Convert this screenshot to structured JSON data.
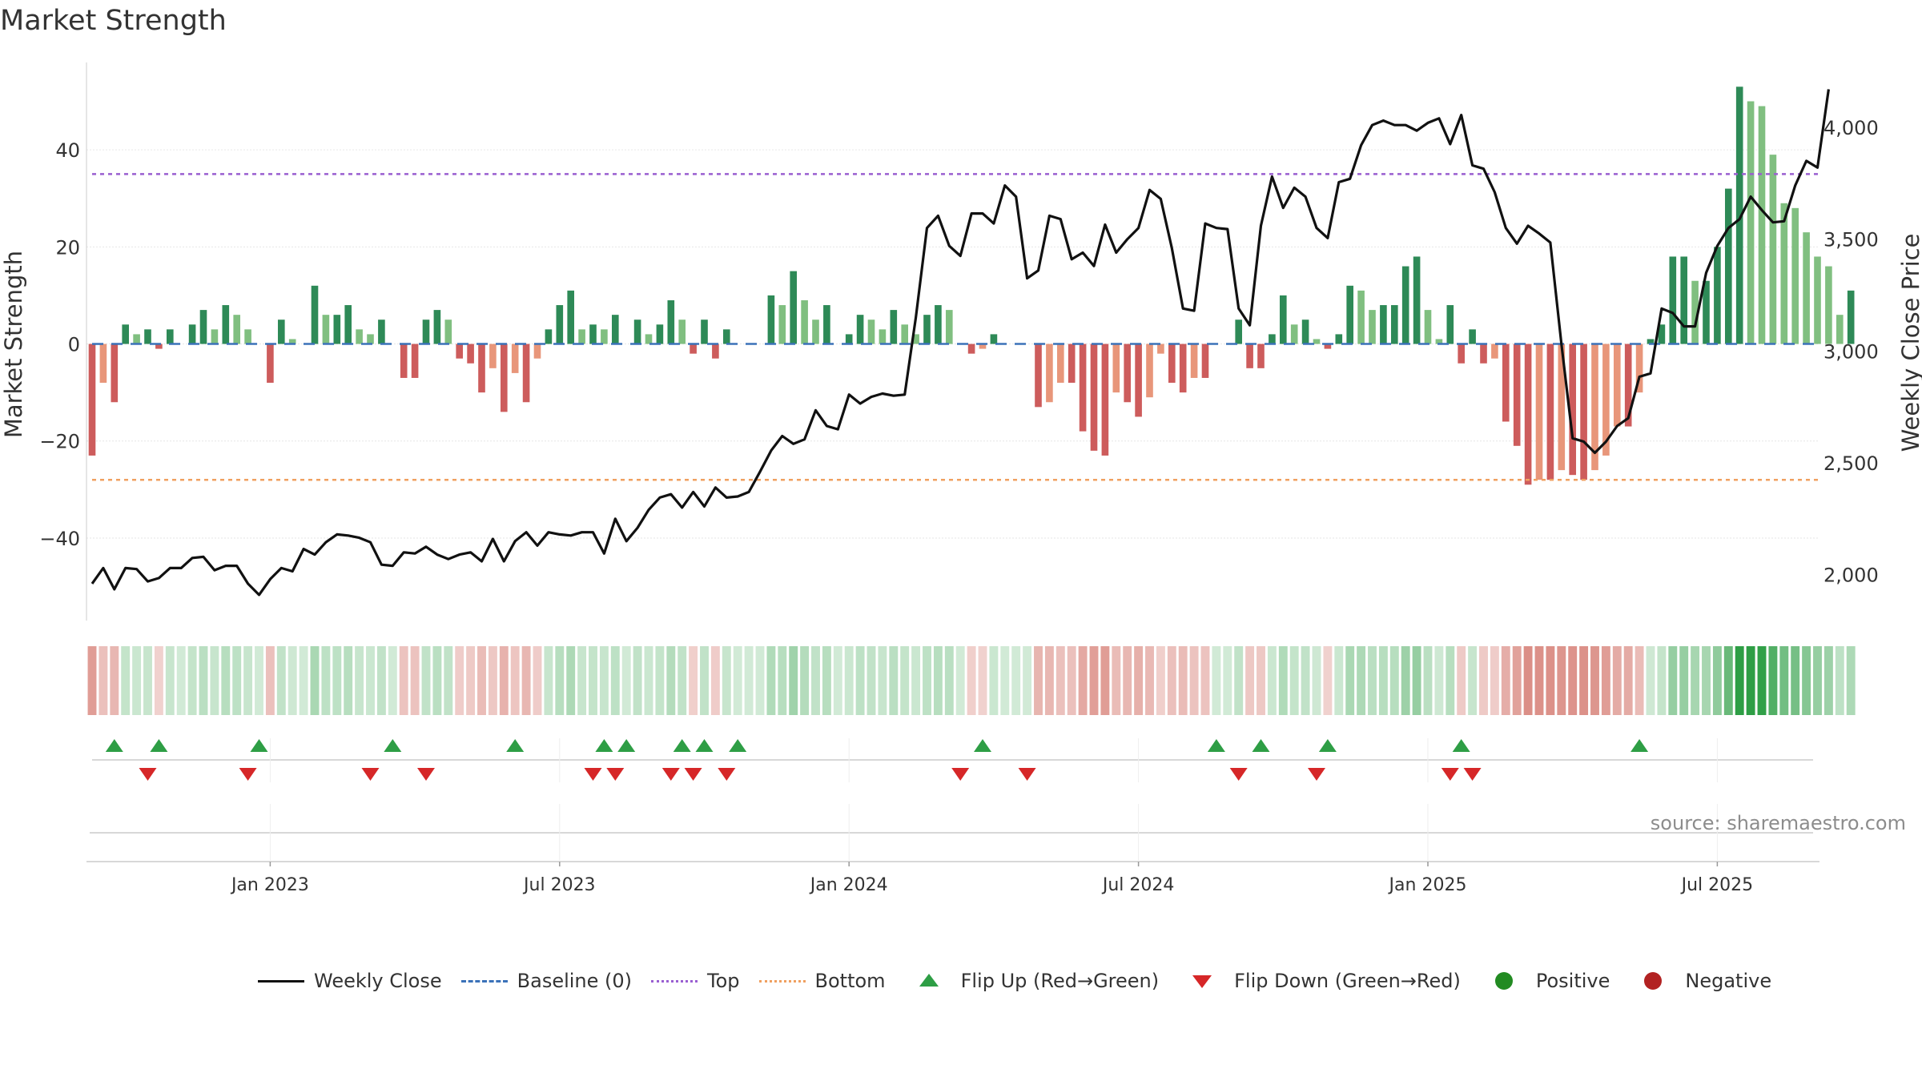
{
  "chart_data": {
    "type": "bar",
    "title": "Market Strength",
    "ylabel_left": "Market Strength",
    "ylabel_right": "Weekly Close Price",
    "left_axis": {
      "range": [
        -57,
        58
      ],
      "ticks": [
        40,
        20,
        0,
        -20,
        -40
      ],
      "tick_labels": [
        "40",
        "20",
        "0",
        "−20",
        "−40"
      ]
    },
    "right_axis": {
      "range": [
        1795,
        4290
      ],
      "ticks": [
        2000,
        2500,
        3000,
        3500,
        4000
      ],
      "tick_labels": [
        "2,000",
        "2,500",
        "3,000",
        "3,500",
        "4,000"
      ]
    },
    "top_level": 35,
    "bottom_level": -28,
    "x_tick_labels": [
      "Jan 2023",
      "Jul 2023",
      "Jan 2024",
      "Jul 2024",
      "Jan 2025",
      "Jul 2025"
    ],
    "x_tick_weeks": [
      16,
      42,
      68,
      94,
      120,
      146
    ],
    "weeks": 157,
    "strength": [
      -23,
      -8,
      -12,
      4,
      2,
      3,
      -1,
      3,
      0,
      4,
      7,
      3,
      8,
      6,
      3,
      0,
      -8,
      5,
      1,
      0,
      12,
      6,
      6,
      8,
      3,
      2,
      5,
      0,
      -7,
      -7,
      5,
      7,
      5,
      -3,
      -4,
      -10,
      -5,
      -14,
      -6,
      -12,
      -3,
      3,
      8,
      11,
      3,
      4,
      3,
      6,
      0,
      5,
      2,
      4,
      9,
      5,
      -2,
      5,
      -3,
      3,
      0,
      0,
      0,
      10,
      8,
      15,
      9,
      5,
      8,
      0,
      2,
      6,
      5,
      3,
      7,
      4,
      2,
      6,
      8,
      7,
      0,
      -2,
      -1,
      2,
      0,
      0,
      0,
      -13,
      -12,
      -8,
      -8,
      -18,
      -22,
      -23,
      -10,
      -12,
      -15,
      -11,
      -2,
      -8,
      -10,
      -7,
      -7,
      0,
      0,
      5,
      -5,
      -5,
      2,
      10,
      4,
      5,
      1,
      -1,
      2,
      12,
      11,
      7,
      8,
      8,
      16,
      18,
      7,
      1,
      8,
      -4,
      3,
      -4,
      -3,
      -16,
      -21,
      -29,
      -28,
      -28,
      -26,
      -27,
      -28,
      -26,
      -23,
      -17,
      -17,
      -10,
      1,
      4,
      18,
      18,
      13,
      13,
      20,
      32,
      53,
      50,
      49,
      39,
      29,
      28,
      23,
      18,
      16,
      6,
      11
    ],
    "close": [
      1960,
      2030,
      1935,
      2030,
      2025,
      1970,
      1985,
      2030,
      2030,
      2075,
      2080,
      2020,
      2040,
      2040,
      1960,
      1910,
      1980,
      2030,
      2015,
      2115,
      2090,
      2145,
      2180,
      2175,
      2165,
      2145,
      2045,
      2040,
      2100,
      2095,
      2125,
      2090,
      2070,
      2090,
      2100,
      2060,
      2160,
      2060,
      2150,
      2190,
      2130,
      2190,
      2180,
      2175,
      2190,
      2190,
      2095,
      2250,
      2150,
      2210,
      2290,
      2345,
      2360,
      2300,
      2370,
      2305,
      2390,
      2345,
      2350,
      2370,
      2460,
      2555,
      2620,
      2585,
      2605,
      2735,
      2665,
      2650,
      2805,
      2765,
      2795,
      2810,
      2800,
      2805,
      3150,
      3550,
      3605,
      3470,
      3425,
      3615,
      3615,
      3570,
      3740,
      3690,
      3325,
      3360,
      3605,
      3590,
      3410,
      3440,
      3380,
      3565,
      3440,
      3500,
      3550,
      3720,
      3680,
      3460,
      3190,
      3180,
      3570,
      3550,
      3545,
      3190,
      3115,
      3560,
      3780,
      3640,
      3730,
      3690,
      3550,
      3505,
      3755,
      3770,
      3920,
      4010,
      4030,
      4010,
      4010,
      3985,
      4020,
      4040,
      3925,
      4055,
      3830,
      3815,
      3710,
      3550,
      3480,
      3560,
      3525,
      3485,
      3030,
      2610,
      2595,
      2545,
      2595,
      2665,
      2700,
      2885,
      2900,
      3190,
      3170,
      3110,
      3110,
      3350,
      3470,
      3550,
      3590,
      3690,
      3630,
      3575,
      3580,
      3740,
      3850,
      3820,
      4170
    ],
    "flips_up": [
      2,
      6,
      15,
      27,
      38,
      46,
      48,
      53,
      55,
      58,
      80,
      101,
      105,
      111,
      123,
      139
    ],
    "flips_down": [
      5,
      14,
      25,
      30,
      45,
      47,
      52,
      54,
      57,
      78,
      84,
      103,
      110,
      122,
      124
    ],
    "legend": [
      "Weekly Close",
      "Baseline (0)",
      "Top",
      "Bottom",
      "Flip Up (Red→Green)",
      "Flip Down (Green→Red)",
      "Positive",
      "Negative"
    ],
    "colors": {
      "close": "#111111",
      "baseline": "#3b72b9",
      "top": "#9a5fd1",
      "bottom": "#f0a060",
      "bar_strong_pos": "#2e8a57",
      "bar_weak_pos": "#80bf80",
      "bar_strong_neg": "#cd5c5c",
      "bar_weak_neg": "#e8967a",
      "flip_up": "#2e9e45",
      "flip_down": "#d62728",
      "positive": "#228b22",
      "negative": "#b22222"
    }
  },
  "source": "source: sharemaestro.com"
}
